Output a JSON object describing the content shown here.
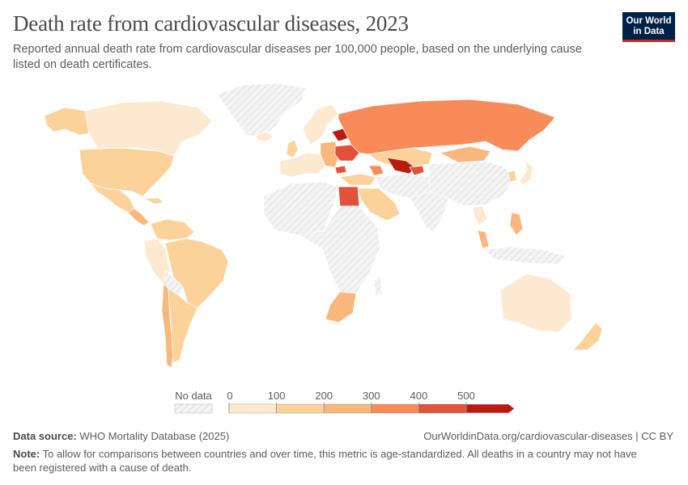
{
  "title": "Death rate from cardiovascular diseases, 2023",
  "subtitle": "Reported annual death rate from cardiovascular diseases per 100,000 people, based on the underlying cause listed on death certificates.",
  "logo": {
    "line1": "Our World",
    "line2": "in Data"
  },
  "legend": {
    "no_data_label": "No data",
    "ticks": [
      "0",
      "100",
      "200",
      "300",
      "400",
      "500"
    ],
    "bins": [
      {
        "min": 0,
        "max": 100,
        "color": "#fde9cf"
      },
      {
        "min": 100,
        "max": 200,
        "color": "#fbd29a"
      },
      {
        "min": 200,
        "max": 300,
        "color": "#f9b77c"
      },
      {
        "min": 300,
        "max": 400,
        "color": "#f78b5a"
      },
      {
        "min": 400,
        "max": 500,
        "color": "#e2523a"
      },
      {
        "min": 500,
        "max": null,
        "color": "#b91b12"
      }
    ]
  },
  "colors": {
    "no_data": "#f0f0f0",
    "border": "#ffffff"
  },
  "footer": {
    "source_label": "Data source:",
    "source_text": "WHO Mortality Database (2025)",
    "url": "OurWorldinData.org/cardiovascular-diseases | CC BY",
    "note_label": "Note:",
    "note_text": "To allow for comparisons between countries and over time, this metric is age-standardized. All deaths in a country may not have been registered with a cause of death."
  }
}
